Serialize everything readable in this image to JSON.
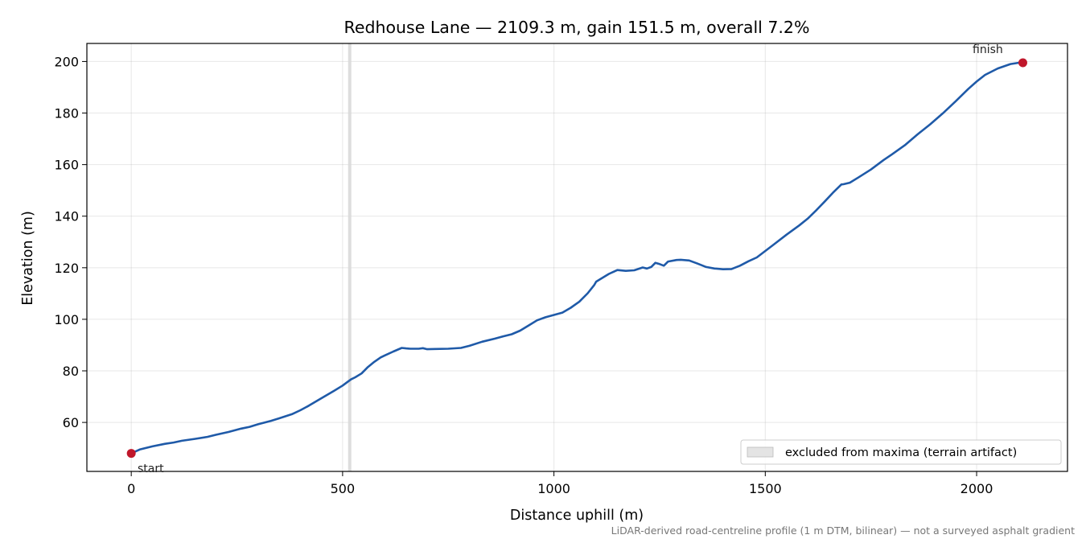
{
  "chart_data": {
    "type": "line",
    "title": "Redhouse Lane — 2109.3 m, gain 151.5 m, overall 7.2%",
    "xlabel": "Distance uphill (m)",
    "ylabel": "Elevation (m)",
    "xlim": [
      -105,
      2215
    ],
    "ylim": [
      41,
      207
    ],
    "x_ticks": [
      0,
      500,
      1000,
      1500,
      2000
    ],
    "y_ticks": [
      60,
      80,
      100,
      120,
      140,
      160,
      180,
      200
    ],
    "grid": true,
    "legend_position": "lower-right",
    "line_color": "#1f5aa8",
    "marker_color": "#c0172b",
    "excluded_band": {
      "x_from": 513,
      "x_to": 519,
      "label": "excluded from maxima (terrain artifact)",
      "color": "#d9d9d9"
    },
    "start_label": "start",
    "finish_label": "finish",
    "footnote": "LiDAR-derived road-centreline profile (1 m DTM, bilinear) — not a surveyed asphalt gradient",
    "series": [
      {
        "x": [
          0,
          20,
          50,
          80,
          100,
          120,
          150,
          180,
          200,
          230,
          260,
          280,
          300,
          330,
          350,
          380,
          400,
          420,
          450,
          480,
          500,
          510,
          520,
          530,
          545,
          560,
          575,
          590,
          600,
          620,
          640,
          650,
          660,
          680,
          690,
          700,
          720,
          750,
          780,
          800,
          830,
          860,
          880,
          900,
          920,
          940,
          960,
          980,
          1000,
          1020,
          1040,
          1060,
          1080,
          1095,
          1100,
          1110,
          1130,
          1150,
          1170,
          1190,
          1210,
          1220,
          1230,
          1240,
          1250,
          1260,
          1270,
          1290,
          1300,
          1320,
          1340,
          1360,
          1380,
          1400,
          1420,
          1440,
          1460,
          1480,
          1500,
          1520,
          1550,
          1580,
          1600,
          1620,
          1640,
          1660,
          1680,
          1685,
          1700,
          1720,
          1750,
          1780,
          1800,
          1830,
          1860,
          1890,
          1920,
          1950,
          1980,
          2000,
          2020,
          2050,
          2080,
          2100,
          2109.3
        ],
        "y": [
          48,
          49.5,
          50.7,
          51.7,
          52.2,
          52.9,
          53.6,
          54.4,
          55.2,
          56.3,
          57.6,
          58.3,
          59.3,
          60.6,
          61.6,
          63.2,
          64.7,
          66.5,
          69.4,
          72.3,
          74.3,
          75.5,
          76.7,
          77.5,
          79,
          81.5,
          83.5,
          85.2,
          86,
          87.5,
          88.9,
          88.7,
          88.6,
          88.6,
          88.8,
          88.4,
          88.5,
          88.6,
          88.9,
          89.7,
          91.3,
          92.5,
          93.4,
          94.2,
          95.6,
          97.6,
          99.6,
          100.8,
          101.7,
          102.6,
          104.5,
          106.8,
          110.1,
          113.2,
          114.6,
          115.6,
          117.6,
          119.1,
          118.8,
          119,
          120.1,
          119.7,
          120.3,
          121.9,
          121.4,
          120.8,
          122.4,
          123,
          123.1,
          122.8,
          121.6,
          120.3,
          119.7,
          119.4,
          119.5,
          120.8,
          122.5,
          124,
          126.5,
          129,
          132.8,
          136.4,
          139,
          142.2,
          145.6,
          149.1,
          152.3,
          152.4,
          153,
          155,
          158.1,
          161.8,
          164,
          167.5,
          171.7,
          175.6,
          179.9,
          184.5,
          189.3,
          192.2,
          194.8,
          197.3,
          199,
          199.5,
          199.5
        ]
      }
    ]
  }
}
